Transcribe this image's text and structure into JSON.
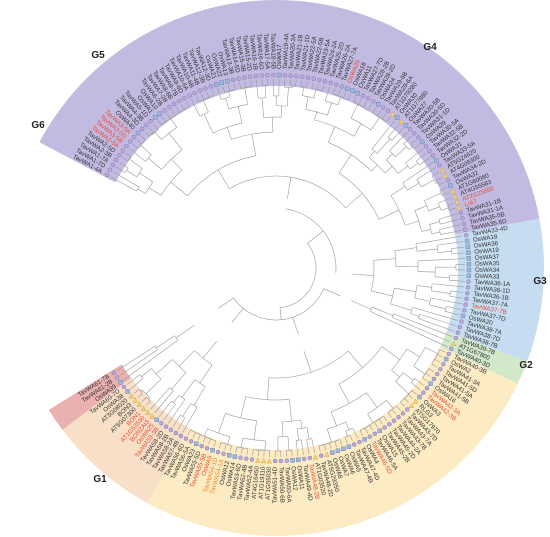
{
  "groups": [
    {
      "label": "G1",
      "color": "#b9aedc",
      "from": 0,
      "to": 81
    },
    {
      "label": "G2",
      "color": "#bcd7ef",
      "from": 82,
      "to": 99
    },
    {
      "label": "G3",
      "color": "#c9e4c1",
      "from": 100,
      "to": 102
    },
    {
      "label": "G4",
      "color": "#fbe8b8",
      "from": 103,
      "to": 156
    },
    {
      "label": "G5",
      "color": "#f7d9bd",
      "from": 157,
      "to": 170
    },
    {
      "label": "G6",
      "color": "#e6a3a3",
      "from": 171,
      "to": 173
    }
  ],
  "colors": {
    "black": "#333333",
    "red": "#e64b35",
    "orange": "#f08a2c"
  },
  "leaves": [
    "TavWA1-4A",
    "TavWA1-7D",
    "TavWA1-7A",
    "TavWA2-3B",
    "TavWA2-5D",
    "TavWA2-5A",
    "TavWA3-5B",
    "TavWA3-5D",
    "TavWA3-5A",
    "OsWA40",
    "TavWA4-3D",
    "TavWA4-3B",
    "TavWA5-1D",
    "OsWA1",
    "OsWA10",
    "TavWA6-2B",
    "TavWA7-2B",
    "TavWA8-6B",
    "TavWA9-7B",
    "TavWA9-6D",
    "TavWA10-6A",
    "TavWA10-6B",
    "TavWA11-4B",
    "TavWA12-3B",
    "TavWA12-3D",
    "OsWA21",
    "OsWA22",
    "OsWA13",
    "TavWA13-3B",
    "TavWA14-5D",
    "TavWA15-3B",
    "TavWA15-2D",
    "TavWA16-1B",
    "TavWA16-6D",
    "TavWA17-5A",
    "TavWA18-5B",
    "OsWA17",
    "TavWA19-4A",
    "TavWA20-3A",
    "TavWA21-1B",
    "TavWA21-1D",
    "TavWA22-5A",
    "TavWA22-5B",
    "TavWA23-5A",
    "TavWA24-2A",
    "TavWA25-2D",
    "TavWA26-2A",
    "TavWA27-7A",
    "OsWA26",
    "OsWA18",
    "OsWA11",
    "TavWA27-7D",
    "TavWA28-2B",
    "TavWA28-2D",
    "OsWA24",
    "TavWA29-6B",
    "TavWA29-6A",
    "AT1G79280",
    "OsWA30",
    "AT1G77880",
    "OsWA27",
    "TavWA30-5B",
    "TavWA30-5D",
    "TavWA31-1D",
    "OsWA29",
    "TavWA30-5A",
    "TavWA32-5B",
    "TavWA32-2D",
    "OsWA31",
    "TavWA33-5A",
    "AT5G24620",
    "AT4G08300",
    "TavWA34-2D",
    "OsWA32",
    "AT1G60080",
    "AT4G55583",
    "AT2G25580",
    "Lr67",
    "TavWA31-1B",
    "TavWA31-1A",
    "TavWA35-5B",
    "TavWA35-5D",
    "TavWA33-4D",
    "OsWA18",
    "OsWA36",
    "OsWA19",
    "OsWA37",
    "OsWA35",
    "OsWA34",
    "OsWA33",
    "TavWA36-1A",
    "TavWA36-1D",
    "TavWA36-1B",
    "TavWA37-7A",
    "TavWA37-7B",
    "TavWA37-7D",
    "OsWA20",
    "TavWA38-7A",
    "TavWA38-7D",
    "TavWA38-7B",
    "TavWA39-7B",
    "AT1G67800",
    "TavWA40-3D",
    "TavWA40-3B",
    "OsWA2",
    "TavWA41-3A",
    "TavWA41-5D",
    "TavWA41-5A",
    "TavWA41-5B",
    "OsWA16",
    "TavWA42-3A",
    "TavWA42-3B",
    "OsWA3",
    "RLG3",
    "AT5G17970",
    "TavWA43-7D",
    "TavWA43-7A",
    "TavWA43-7B",
    "TavWA44-2A",
    "TavWA45-2D",
    "TavWA45-2B",
    "OsWA15",
    "TavWA46-5A",
    "TavWA46-5D",
    "OsWA4",
    "TavWA47-4D",
    "TavWA47-4B",
    "OsWA5",
    "OsWA6",
    "OsWA7",
    "OsWA8",
    "AT5G29350",
    "TavWA48-2D",
    "AT1G03520",
    "TavWA48-2B",
    "TavWA49-4D",
    "OsWA11",
    "OsWA12",
    "TavWA50-6A",
    "TavWA50-6B",
    "TavWA51-4D",
    "AT1G55030",
    "AT1G19110",
    "AT4G16450",
    "TavWA52-4A",
    "TavWA52-4B",
    "TavWA53-6D",
    "OsWA14",
    "OsWA12",
    "TavWA54-1A",
    "TavWA54-1D",
    "OsWA9",
    "TavWA55-5B",
    "TavWA55-5D",
    "OsWA23",
    "TavWA56-5A",
    "TavWA56-6D",
    "TavWA57-4B",
    "TavWA58-2A",
    "TavWA58-2B",
    "TavWA58-2D",
    "TavWA59-3B",
    "OsWA25",
    "BONZAI3",
    "AT1G53590",
    "BON1",
    "AT5G07300",
    "BON3",
    "AT3G08020",
    "OsWA38",
    "TavWA60-7D",
    "OsWA39",
    "TavWA61-2B",
    "TavWA61-7B"
  ],
  "highlight_red": [
    5,
    6,
    7,
    8,
    48,
    76,
    77,
    94,
    110,
    111,
    123,
    134,
    151,
    152,
    161,
    162,
    163,
    164,
    165
  ],
  "highlight_orange": [
    149,
    150
  ]
}
